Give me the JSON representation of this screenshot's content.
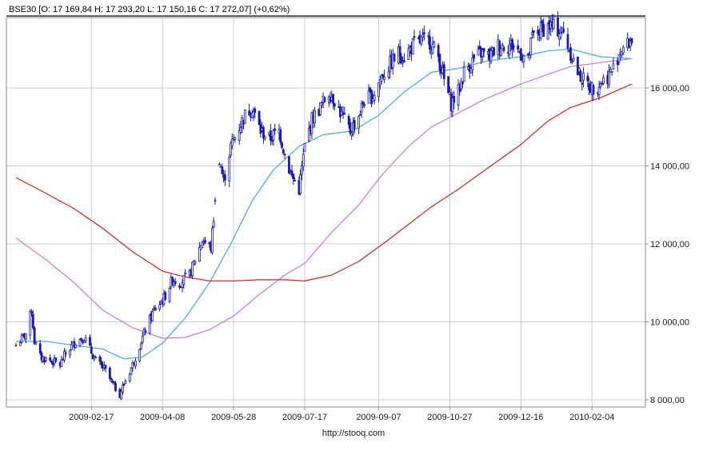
{
  "chart_data": {
    "type": "candlestick",
    "header": {
      "text": "BSE30 [O: 17 169,84  H: 17 293,20  L: 17 150,16  C: 17 272,07] (+0,62%)"
    },
    "footer": "http://stooq.com",
    "ylim": [
      7900,
      17800
    ],
    "y_ticks": [
      {
        "value": 8000,
        "label": "8 000,00"
      },
      {
        "value": 10000,
        "label": "10 000,00"
      },
      {
        "value": 12000,
        "label": "12 000,00"
      },
      {
        "value": 14000,
        "label": "14 000,00"
      },
      {
        "value": 16000,
        "label": "16 000,00"
      }
    ],
    "x_range": [
      "2008-12-26",
      "2010-03-04"
    ],
    "x_ticks": [
      "2009-02-17",
      "2009-04-08",
      "2009-05-28",
      "2009-07-17",
      "2009-09-07",
      "2009-10-27",
      "2009-12-16",
      "2010-02-04"
    ],
    "grid": true,
    "colors": {
      "price": "#1a1ab4",
      "ma_short": "#3ab0d8",
      "ma_mid": "#c878e0",
      "ma_long": "#d42020",
      "grid": "#cccccc"
    },
    "price_points": [
      [
        "2008-12-26",
        9400
      ],
      [
        "2009-01-02",
        9700
      ],
      [
        "2009-01-06",
        10300
      ],
      [
        "2009-01-08",
        9500
      ],
      [
        "2009-01-12",
        9100
      ],
      [
        "2009-01-20",
        9000
      ],
      [
        "2009-01-26",
        8900
      ],
      [
        "2009-01-30",
        9200
      ],
      [
        "2009-02-06",
        9500
      ],
      [
        "2009-02-12",
        9600
      ],
      [
        "2009-02-16",
        9300
      ],
      [
        "2009-02-20",
        9000
      ],
      [
        "2009-02-26",
        8800
      ],
      [
        "2009-03-04",
        8400
      ],
      [
        "2009-03-09",
        8150
      ],
      [
        "2009-03-13",
        8500
      ],
      [
        "2009-03-18",
        8900
      ],
      [
        "2009-03-23",
        9400
      ],
      [
        "2009-03-27",
        9800
      ],
      [
        "2009-04-02",
        10300
      ],
      [
        "2009-04-09",
        10600
      ],
      [
        "2009-04-15",
        11100
      ],
      [
        "2009-04-20",
        11000
      ],
      [
        "2009-04-27",
        11200
      ],
      [
        "2009-05-06",
        12100
      ],
      [
        "2009-05-12",
        11900
      ],
      [
        "2009-05-18",
        14200
      ],
      [
        "2009-05-21",
        13600
      ],
      [
        "2009-05-26",
        14500
      ],
      [
        "2009-06-01",
        15000
      ],
      [
        "2009-06-05",
        15300
      ],
      [
        "2009-06-10",
        15500
      ],
      [
        "2009-06-16",
        14900
      ],
      [
        "2009-06-22",
        14700
      ],
      [
        "2009-06-29",
        14900
      ],
      [
        "2009-07-03",
        14300
      ],
      [
        "2009-07-07",
        13800
      ],
      [
        "2009-07-13",
        13400
      ],
      [
        "2009-07-17",
        14500
      ],
      [
        "2009-07-22",
        15200
      ],
      [
        "2009-07-28",
        15500
      ],
      [
        "2009-08-03",
        15900
      ],
      [
        "2009-08-07",
        15700
      ],
      [
        "2009-08-12",
        15300
      ],
      [
        "2009-08-18",
        14900
      ],
      [
        "2009-08-24",
        15300
      ],
      [
        "2009-08-28",
        15700
      ],
      [
        "2009-09-03",
        15800
      ],
      [
        "2009-09-09",
        16300
      ],
      [
        "2009-09-15",
        16600
      ],
      [
        "2009-09-21",
        16900
      ],
      [
        "2009-09-25",
        16800
      ],
      [
        "2009-10-01",
        17100
      ],
      [
        "2009-10-07",
        17200
      ],
      [
        "2009-10-13",
        17200
      ],
      [
        "2009-10-19",
        16800
      ],
      [
        "2009-10-23",
        16200
      ],
      [
        "2009-10-28",
        15600
      ],
      [
        "2009-11-02",
        15900
      ],
      [
        "2009-11-06",
        16400
      ],
      [
        "2009-11-12",
        16700
      ],
      [
        "2009-11-18",
        16900
      ],
      [
        "2009-11-24",
        16800
      ],
      [
        "2009-11-30",
        17100
      ],
      [
        "2009-12-04",
        17100
      ],
      [
        "2009-12-10",
        17100
      ],
      [
        "2009-12-16",
        16900
      ],
      [
        "2009-12-21",
        16700
      ],
      [
        "2009-12-24",
        17300
      ],
      [
        "2009-12-30",
        17500
      ],
      [
        "2010-01-05",
        17600
      ],
      [
        "2010-01-11",
        17500
      ],
      [
        "2010-01-15",
        17400
      ],
      [
        "2010-01-20",
        16900
      ],
      [
        "2010-01-25",
        16400
      ],
      [
        "2010-01-29",
        16200
      ],
      [
        "2010-02-04",
        16000
      ],
      [
        "2010-02-09",
        16100
      ],
      [
        "2010-02-15",
        16300
      ],
      [
        "2010-02-19",
        16500
      ],
      [
        "2010-02-24",
        17000
      ],
      [
        "2010-03-01",
        17100
      ],
      [
        "2010-03-04",
        17272
      ]
    ],
    "series": [
      {
        "values": [
          [
            "2008-12-26",
            9500
          ],
          [
            "2009-01-16",
            9500
          ],
          [
            "2009-02-05",
            9400
          ],
          [
            "2009-02-25",
            9300
          ],
          [
            "2009-03-12",
            9050
          ],
          [
            "2009-03-25",
            9100
          ],
          [
            "2009-04-08",
            9450
          ],
          [
            "2009-04-24",
            10100
          ],
          [
            "2009-05-11",
            11000
          ],
          [
            "2009-05-26",
            12000
          ],
          [
            "2009-06-10",
            13100
          ],
          [
            "2009-06-25",
            13900
          ],
          [
            "2009-07-13",
            14500
          ],
          [
            "2009-07-30",
            14800
          ],
          [
            "2009-08-20",
            14900
          ],
          [
            "2009-09-07",
            15300
          ],
          [
            "2009-09-25",
            15900
          ],
          [
            "2009-10-14",
            16400
          ],
          [
            "2009-11-02",
            16500
          ],
          [
            "2009-11-23",
            16700
          ],
          [
            "2009-12-16",
            16800
          ],
          [
            "2010-01-04",
            16950
          ],
          [
            "2010-01-20",
            17000
          ],
          [
            "2010-02-10",
            16800
          ],
          [
            "2010-03-04",
            16750
          ]
        ]
      },
      {
        "values": [
          [
            "2008-12-26",
            12150
          ],
          [
            "2009-01-16",
            11600
          ],
          [
            "2009-02-05",
            11000
          ],
          [
            "2009-02-25",
            10300
          ],
          [
            "2009-03-18",
            9850
          ],
          [
            "2009-04-08",
            9580
          ],
          [
            "2009-04-24",
            9600
          ],
          [
            "2009-05-11",
            9800
          ],
          [
            "2009-05-28",
            10150
          ],
          [
            "2009-06-15",
            10700
          ],
          [
            "2009-07-03",
            11200
          ],
          [
            "2009-07-17",
            11500
          ],
          [
            "2009-08-05",
            12300
          ],
          [
            "2009-08-24",
            13000
          ],
          [
            "2009-09-10",
            13800
          ],
          [
            "2009-09-28",
            14500
          ],
          [
            "2009-10-14",
            15000
          ],
          [
            "2009-10-30",
            15300
          ],
          [
            "2009-11-20",
            15700
          ],
          [
            "2009-12-16",
            16100
          ],
          [
            "2010-01-04",
            16350
          ],
          [
            "2010-01-20",
            16550
          ],
          [
            "2010-02-10",
            16650
          ],
          [
            "2010-03-04",
            16750
          ]
        ]
      },
      {
        "values": [
          [
            "2008-12-26",
            13700
          ],
          [
            "2009-01-16",
            13300
          ],
          [
            "2009-02-05",
            12900
          ],
          [
            "2009-02-25",
            12400
          ],
          [
            "2009-03-18",
            11800
          ],
          [
            "2009-04-08",
            11300
          ],
          [
            "2009-04-24",
            11150
          ],
          [
            "2009-05-11",
            11050
          ],
          [
            "2009-05-28",
            11050
          ],
          [
            "2009-06-15",
            11080
          ],
          [
            "2009-07-03",
            11080
          ],
          [
            "2009-07-17",
            11050
          ],
          [
            "2009-08-05",
            11200
          ],
          [
            "2009-08-24",
            11550
          ],
          [
            "2009-09-10",
            12000
          ],
          [
            "2009-09-28",
            12500
          ],
          [
            "2009-10-14",
            12950
          ],
          [
            "2009-11-02",
            13400
          ],
          [
            "2009-11-23",
            13950
          ],
          [
            "2009-12-16",
            14550
          ],
          [
            "2010-01-04",
            15150
          ],
          [
            "2010-01-20",
            15500
          ],
          [
            "2010-02-10",
            15750
          ],
          [
            "2010-03-04",
            16100
          ]
        ]
      }
    ]
  }
}
